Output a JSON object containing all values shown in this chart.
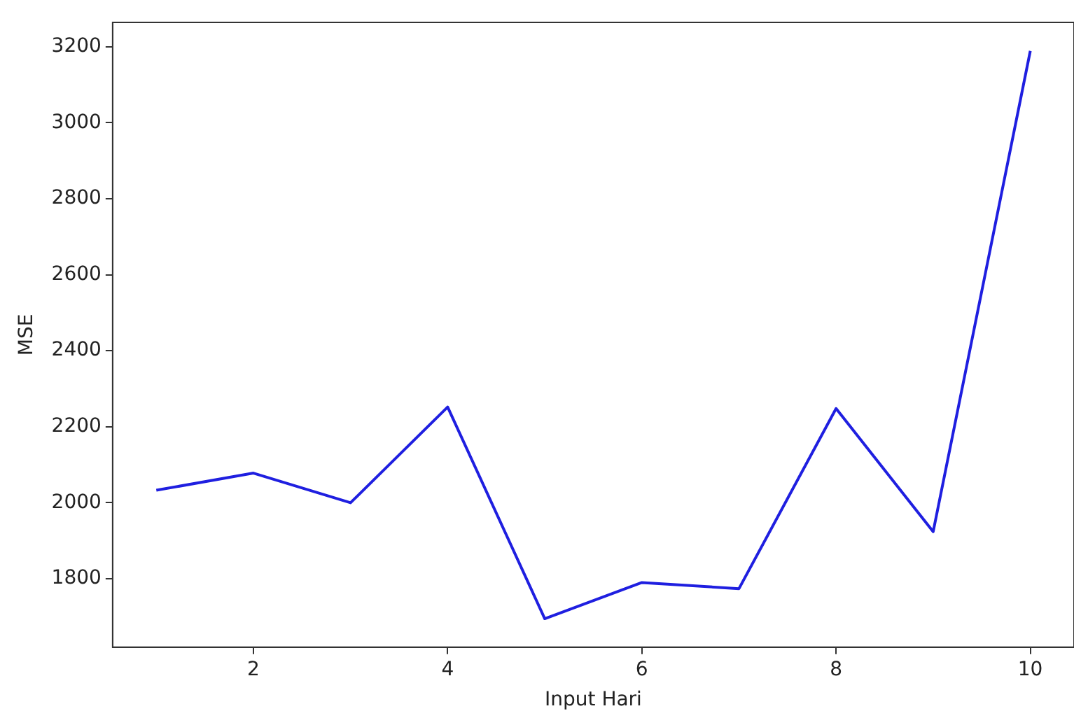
{
  "chart_data": {
    "type": "line",
    "xlabel": "Input Hari",
    "ylabel": "MSE",
    "x": [
      1,
      2,
      3,
      4,
      5,
      6,
      7,
      8,
      9,
      10
    ],
    "series": [
      {
        "color": "#1f1fe0",
        "values": [
          2033,
          2078,
          2000,
          2252,
          1695,
          1790,
          1774,
          2248,
          1924,
          3189
        ]
      }
    ],
    "xlim": [
      0.55,
      10.45
    ],
    "xticks": [
      2,
      4,
      6,
      8,
      10
    ],
    "ylim": [
      1620,
      3264
    ],
    "yticks": [
      1800,
      2000,
      2200,
      2400,
      2600,
      2800,
      3000,
      3200
    ],
    "grid": false,
    "legend": false,
    "marker": "none",
    "line_style": "solid"
  }
}
